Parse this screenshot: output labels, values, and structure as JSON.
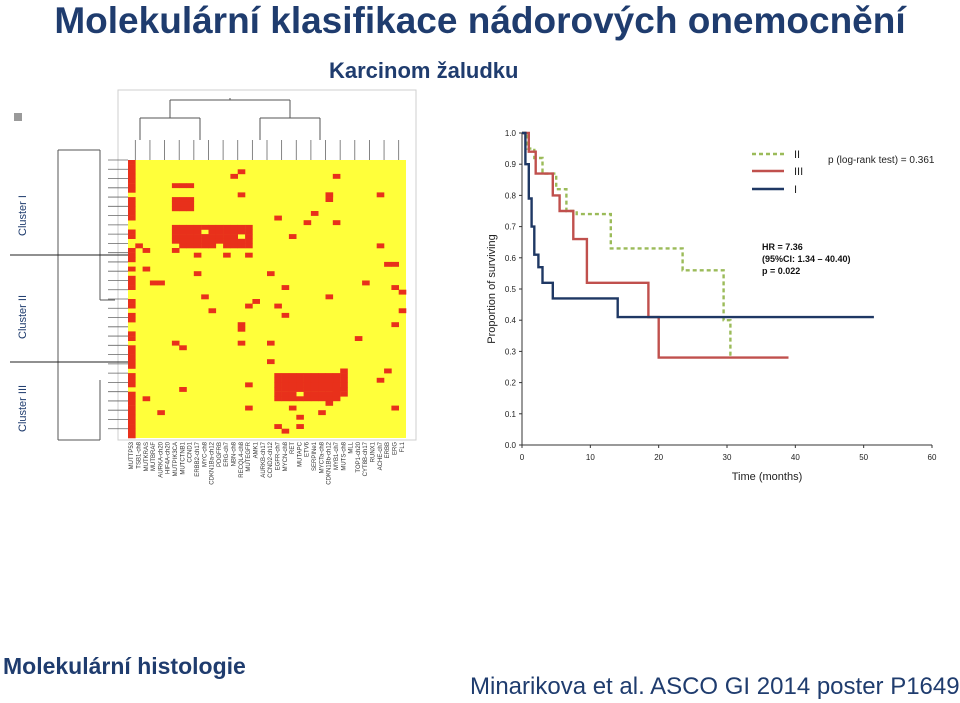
{
  "header": {
    "title": "Molekulární klasifikace nádorových onemocnění",
    "subtitle": "Karcinom žaludku"
  },
  "footer": {
    "left": "Molekulární histologie",
    "right": "Minarikova et al. ASCO GI 2014 poster P1649"
  },
  "heatmap": {
    "cluster_labels": [
      "Cluster I",
      "Cluster II",
      "Cluster III"
    ],
    "genes": [
      "MUTTP53",
      "TSB1-ch8",
      "MUTKRAS",
      "MUTBRAF",
      "AURKA-ch20",
      "HIF4A-ch20",
      "MUTPIK3CA",
      "MUTCTNB1",
      "CCND1",
      "ERBB2-ch17",
      "MYC-ch8",
      "CDKN1Ba-ch12",
      "PDGFRB",
      "ERG-ch7",
      "NBN-ch8",
      "RECQL4-ch8",
      "MUTEGFR",
      "AMK1",
      "AURKB-ch17",
      "CCND2-ch12",
      "EGFR-ch7",
      "MYCN-ch8",
      "RET",
      "MUTAPC",
      "ETV6",
      "SERPINe1",
      "MYCTa-ch8",
      "CDKN1Bb-ch12",
      "MYB1-ch7",
      "MUTS-ch8",
      "MLL",
      "TOP1-ch20",
      "CYT8B-ch17",
      "RUNX1",
      "ACHE-ch7",
      "ERBB",
      "ERG",
      "FL1"
    ],
    "colors": {
      "high": "#e8301b",
      "low": "#ffff3a"
    }
  },
  "km": {
    "title_note": "p (log-rank test) = 0.361",
    "hr": "HR = 7.36",
    "ci": "(95%CI: 1.34 – 40.40)",
    "p": "p = 0.022",
    "legend": [
      "II",
      "III",
      "I"
    ]
  },
  "chart_data": {
    "type": "line",
    "xlabel": "Time (months)",
    "ylabel": "Proportion of surviving",
    "xlim": [
      0,
      60
    ],
    "ylim": [
      0,
      1
    ],
    "xticks": [
      "0",
      "10",
      "20",
      "30",
      "40",
      "50",
      "60"
    ],
    "yticks": [
      "0.0",
      "0.1",
      "0.2",
      "0.3",
      "0.4",
      "0.5",
      "0.6",
      "0.7",
      "0.8",
      "0.9",
      "1.0"
    ],
    "series": [
      {
        "name": "II",
        "style": "dashed",
        "color": "#9bbb59",
        "x": [
          0,
          0.8,
          0.8,
          1.8,
          1.8,
          3,
          3,
          5,
          5,
          6.5,
          6.5,
          8,
          8,
          13,
          13,
          23.5,
          23.5,
          29.5,
          29.5,
          30.5,
          30.5,
          31
        ],
        "y": [
          1,
          1,
          0.95,
          0.95,
          0.92,
          0.92,
          0.87,
          0.87,
          0.82,
          0.82,
          0.75,
          0.75,
          0.74,
          0.74,
          0.63,
          0.63,
          0.56,
          0.56,
          0.4,
          0.4,
          0.29,
          0.29
        ]
      },
      {
        "name": "III",
        "style": "solid",
        "color": "#c0504d",
        "x": [
          0,
          1,
          1,
          2,
          2,
          4.5,
          4.5,
          5.5,
          5.5,
          7.5,
          7.5,
          9.5,
          9.5,
          18.5,
          18.5,
          20,
          20,
          39
        ],
        "y": [
          1,
          1,
          0.94,
          0.94,
          0.87,
          0.87,
          0.8,
          0.8,
          0.75,
          0.75,
          0.66,
          0.66,
          0.52,
          0.52,
          0.41,
          0.41,
          0.28,
          0.28
        ]
      },
      {
        "name": "I",
        "style": "solid",
        "color": "#1f3864",
        "x": [
          0,
          0.5,
          0.5,
          1,
          1,
          1.4,
          1.4,
          1.8,
          1.8,
          2.4,
          2.4,
          3,
          3,
          4.5,
          4.5,
          14,
          14,
          51.5
        ],
        "y": [
          1,
          1,
          0.9,
          0.9,
          0.79,
          0.79,
          0.7,
          0.7,
          0.61,
          0.61,
          0.57,
          0.57,
          0.52,
          0.52,
          0.47,
          0.47,
          0.41,
          0.41
        ]
      }
    ]
  }
}
